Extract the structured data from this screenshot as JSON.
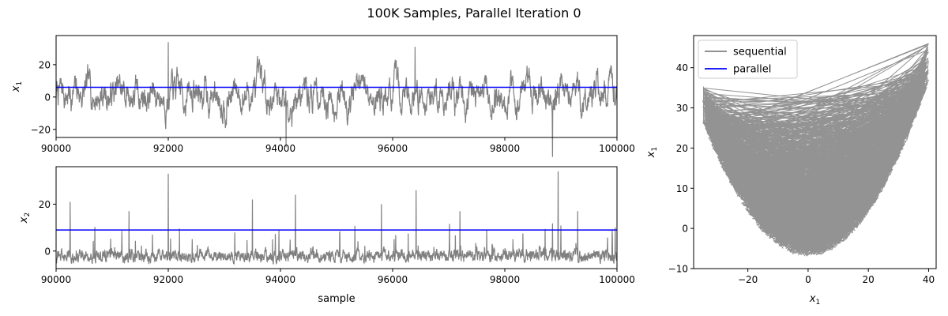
{
  "title": "100K Samples, Parallel Iteration 0",
  "colors": {
    "sequential": "#808080",
    "parallel": "#0000ff",
    "axes": "#000000",
    "background": "#ffffff"
  },
  "chart_data": [
    {
      "id": "trace-x1",
      "type": "line",
      "ylabel_base": "x",
      "ylabel_sub": "1",
      "xlabel": "",
      "xlim": [
        90000,
        100000
      ],
      "ylim": [
        -25,
        38
      ],
      "xticks": [
        90000,
        92000,
        94000,
        96000,
        98000,
        100000
      ],
      "yticks": [
        -20,
        0,
        20
      ],
      "ytick_labels": [
        "−20",
        "0",
        "20"
      ],
      "series": [
        {
          "role": "sequential",
          "n": 10000,
          "mean": 2,
          "spread": 9,
          "min": -37,
          "max": 35,
          "peaks": [
            [
              92000,
              34
            ],
            [
              96400,
              31
            ],
            [
              98850,
              -37
            ],
            [
              94100,
              -31
            ]
          ]
        },
        {
          "role": "parallel",
          "x": [
            90000,
            100000
          ],
          "y": [
            6,
            6
          ]
        }
      ]
    },
    {
      "id": "trace-x2",
      "type": "line",
      "ylabel_base": "x",
      "ylabel_sub": "2",
      "xlabel": "sample",
      "xlim": [
        90000,
        100000
      ],
      "ylim": [
        -7.5,
        36
      ],
      "xticks": [
        90000,
        92000,
        94000,
        96000,
        98000,
        100000
      ],
      "yticks": [
        0,
        20
      ],
      "ytick_labels": [
        "0",
        "20"
      ],
      "series": [
        {
          "role": "sequential",
          "n": 10000,
          "baseline": -2,
          "min": -6,
          "max": 35,
          "peaks": [
            [
              92000,
              33
            ],
            [
              98950,
              34
            ],
            [
              96420,
              26
            ],
            [
              90250,
              21
            ],
            [
              94270,
              24
            ],
            [
              93500,
              22
            ],
            [
              95800,
              20
            ],
            [
              91300,
              17
            ],
            [
              99300,
              17
            ],
            [
              97200,
              17
            ]
          ]
        },
        {
          "role": "parallel",
          "x": [
            90000,
            100000
          ],
          "y": [
            9,
            9
          ]
        }
      ]
    },
    {
      "id": "scatter-x1-x1",
      "type": "line",
      "xlabel_base": "x",
      "xlabel_sub": "1",
      "ylabel_base": "x",
      "ylabel_sub": "1",
      "xlim": [
        -38,
        42.5
      ],
      "ylim": [
        -10,
        48
      ],
      "xticks": [
        -20,
        0,
        20,
        40
      ],
      "xtick_labels": [
        "−20",
        "0",
        "20",
        "40"
      ],
      "yticks": [
        -10,
        0,
        10,
        20,
        30,
        40
      ],
      "ytick_labels": [
        "−10",
        "0",
        "10",
        "20",
        "30",
        "40"
      ],
      "legend": {
        "placement": "upper-left",
        "entries": [
          {
            "label": "sequential",
            "role": "sequential"
          },
          {
            "label": "parallel",
            "role": "parallel"
          }
        ]
      },
      "series": [
        {
          "role": "sequential",
          "curve": "parabola",
          "x_range": [
            -35,
            40
          ],
          "vertex": [
            0,
            -2
          ],
          "coef": 0.027,
          "band": 5
        }
      ]
    }
  ]
}
